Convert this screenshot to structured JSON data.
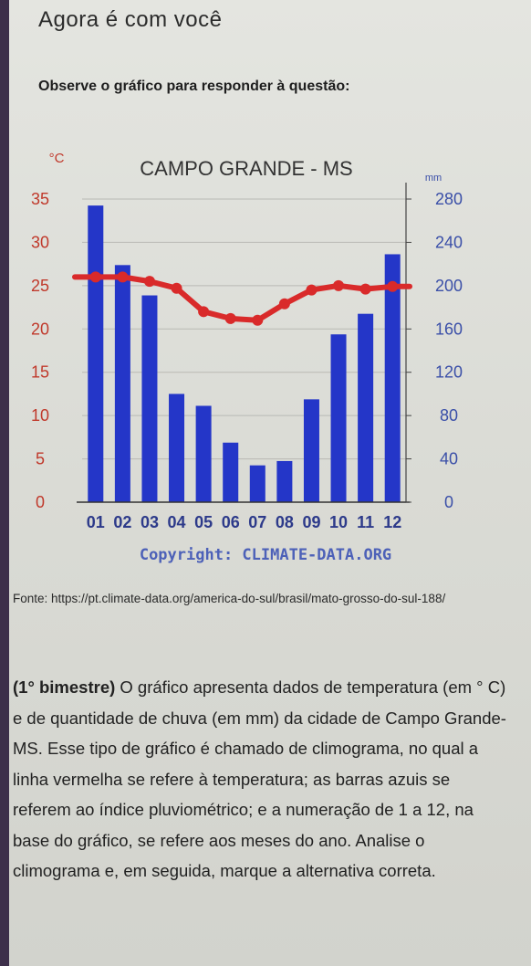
{
  "page": {
    "heading": "Agora é com você",
    "instruction": "Observe o gráfico para responder à questão:",
    "source": "Fonte: https://pt.climate-data.org/america-do-sul/brasil/mato-grosso-do-sul-188/",
    "question_label": "(1° bimestre)",
    "question_text": " O gráfico apresenta dados de temperatura (em ° C) e de quantidade de chuva (em mm) da cidade de Campo Grande-MS. Esse tipo de gráfico é chamado de climograma, no qual a linha vermelha se refere à temperatura; as barras azuis se referem ao índice pluviométrico; e a numeração de 1 a 12, na base do gráfico, se refere aos meses do ano. Analise o climograma e, em seguida, marque a alternativa correta."
  },
  "chart_data": {
    "type": "bar",
    "title": "CAMPO GRANDE - MS",
    "copyright": "Copyright: CLIMATE-DATA.ORG",
    "left_unit": "°C",
    "right_unit": "mm",
    "categories": [
      "01",
      "02",
      "03",
      "04",
      "05",
      "06",
      "07",
      "08",
      "09",
      "10",
      "11",
      "12"
    ],
    "left_ticks": [
      "35",
      "30",
      "25",
      "20",
      "15",
      "10",
      "5",
      "0"
    ],
    "right_ticks": [
      "280",
      "240",
      "200",
      "160",
      "120",
      "80",
      "40",
      "0"
    ],
    "left_axis": {
      "min": 0,
      "max": 35
    },
    "right_axis": {
      "min": 0,
      "max": 280
    },
    "grid": true,
    "series": [
      {
        "kind": "bar",
        "axis": "right",
        "values": [
          274,
          219,
          191,
          100,
          89,
          55,
          34,
          38,
          95,
          155,
          174,
          229
        ]
      },
      {
        "kind": "line",
        "axis": "left",
        "values": [
          26.0,
          26.0,
          25.5,
          24.7,
          22.0,
          21.2,
          21.0,
          22.9,
          24.5,
          25.0,
          24.6,
          24.9
        ]
      }
    ],
    "colors": {
      "bars": "#2436c8",
      "line": "#d92a2a",
      "left_ticks": "#c0392b",
      "right_ticks": "#3a4fa8",
      "title": "#333333"
    }
  }
}
